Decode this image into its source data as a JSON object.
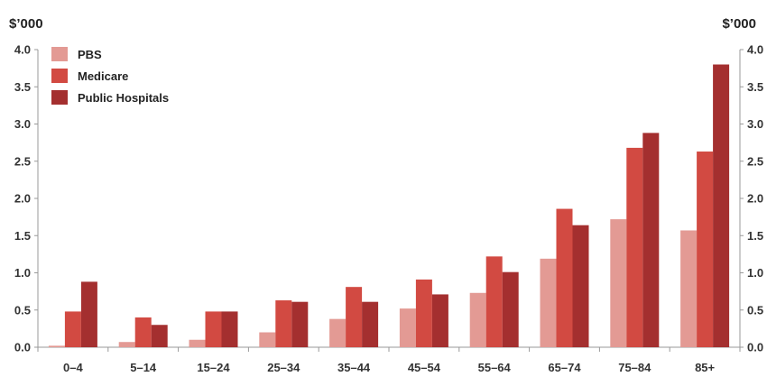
{
  "chart_data": {
    "type": "bar",
    "unit_left": "$’000",
    "unit_right": "$’000",
    "categories": [
      "0–4",
      "5–14",
      "15–24",
      "25–34",
      "35–44",
      "45–54",
      "55–64",
      "65–74",
      "75–84",
      "85+"
    ],
    "series": [
      {
        "name": "PBS",
        "color": "#e39a94",
        "values": [
          0.02,
          0.07,
          0.1,
          0.2,
          0.38,
          0.52,
          0.73,
          1.19,
          1.72,
          1.57
        ]
      },
      {
        "name": "Medicare",
        "color": "#d24a42",
        "values": [
          0.48,
          0.4,
          0.48,
          0.63,
          0.81,
          0.91,
          1.22,
          1.86,
          2.68,
          2.63
        ]
      },
      {
        "name": "Public Hospitals",
        "color": "#a42f2f",
        "values": [
          0.88,
          0.3,
          0.48,
          0.61,
          0.61,
          0.71,
          1.01,
          1.64,
          2.88,
          3.8
        ]
      }
    ],
    "yticks": [
      "0.0",
      "0.5",
      "1.0",
      "1.5",
      "2.0",
      "2.5",
      "3.0",
      "3.5",
      "4.0"
    ],
    "ylim": [
      0,
      4
    ],
    "legend_position": "top-left",
    "grid": false
  }
}
